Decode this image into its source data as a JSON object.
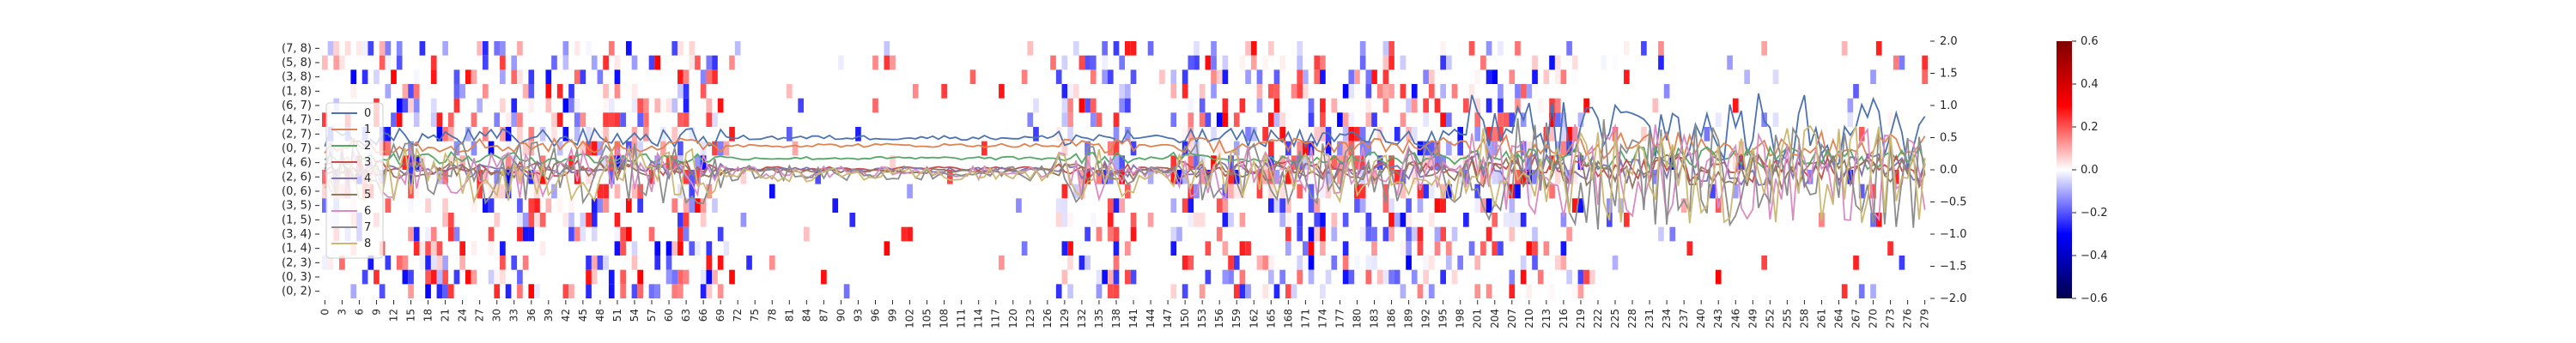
{
  "chart_data": {
    "type": "heatmap",
    "x_ticks": [
      0,
      3,
      6,
      9,
      12,
      15,
      18,
      21,
      24,
      27,
      30,
      33,
      36,
      39,
      42,
      45,
      48,
      51,
      54,
      57,
      60,
      63,
      66,
      69,
      72,
      75,
      78,
      81,
      84,
      87,
      90,
      93,
      96,
      99,
      102,
      105,
      108,
      111,
      114,
      117,
      120,
      123,
      126,
      129,
      132,
      135,
      138,
      141,
      144,
      147,
      150,
      153,
      156,
      159,
      162,
      165,
      168,
      171,
      174,
      177,
      180,
      183,
      186,
      189,
      192,
      195,
      198,
      201,
      204,
      207,
      210,
      213,
      216,
      219,
      222,
      225,
      228,
      231,
      234,
      237,
      240,
      243,
      246,
      249,
      252,
      255,
      258,
      261,
      264,
      267,
      270,
      273,
      276,
      279
    ],
    "xlim": [
      0,
      280
    ],
    "rows": [
      "(7, 8)",
      "(5, 8)",
      "(3, 8)",
      "(1, 8)",
      "(6, 7)",
      "(4, 7)",
      "(2, 7)",
      "(0, 7)",
      "(4, 6)",
      "(2, 6)",
      "(0, 6)",
      "(3, 5)",
      "(1, 5)",
      "(3, 4)",
      "(1, 4)",
      "(2, 3)",
      "(0, 3)",
      "(0, 2)"
    ],
    "colorbar": {
      "ticks": [
        "0.6",
        "0.4",
        "0.2",
        "0.0",
        "−0.2",
        "−0.4",
        "−0.6"
      ],
      "vmin": -0.6,
      "vmax": 0.6,
      "cmap": "seismic"
    },
    "right_axis": {
      "ticks": [
        "2.0",
        "1.5",
        "1.0",
        "0.5",
        "0.0",
        "−0.5",
        "−1.0",
        "−1.5",
        "−2.0"
      ],
      "ylim": [
        -2.0,
        2.0
      ]
    },
    "series": [
      {
        "name": "0",
        "color": "#4c72b0",
        "base": 0.5,
        "amp": 0.12
      },
      {
        "name": "1",
        "color": "#dd8452",
        "base": 0.38,
        "amp": 0.1
      },
      {
        "name": "2",
        "color": "#55a868",
        "base": 0.18,
        "amp": 0.08
      },
      {
        "name": "3",
        "color": "#c44e52",
        "base": 0.02,
        "amp": 0.1
      },
      {
        "name": "4",
        "color": "#8172b3",
        "base": 0.0,
        "amp": 0.12
      },
      {
        "name": "5",
        "color": "#937860",
        "base": -0.02,
        "amp": 0.12
      },
      {
        "name": "6",
        "color": "#da8bc3",
        "base": -0.05,
        "amp": 0.35
      },
      {
        "name": "7",
        "color": "#8c8c8c",
        "base": -0.05,
        "amp": 0.4
      },
      {
        "name": "8",
        "color": "#ccb974",
        "base": -0.08,
        "amp": 0.35
      }
    ],
    "legend": "left-inside"
  }
}
